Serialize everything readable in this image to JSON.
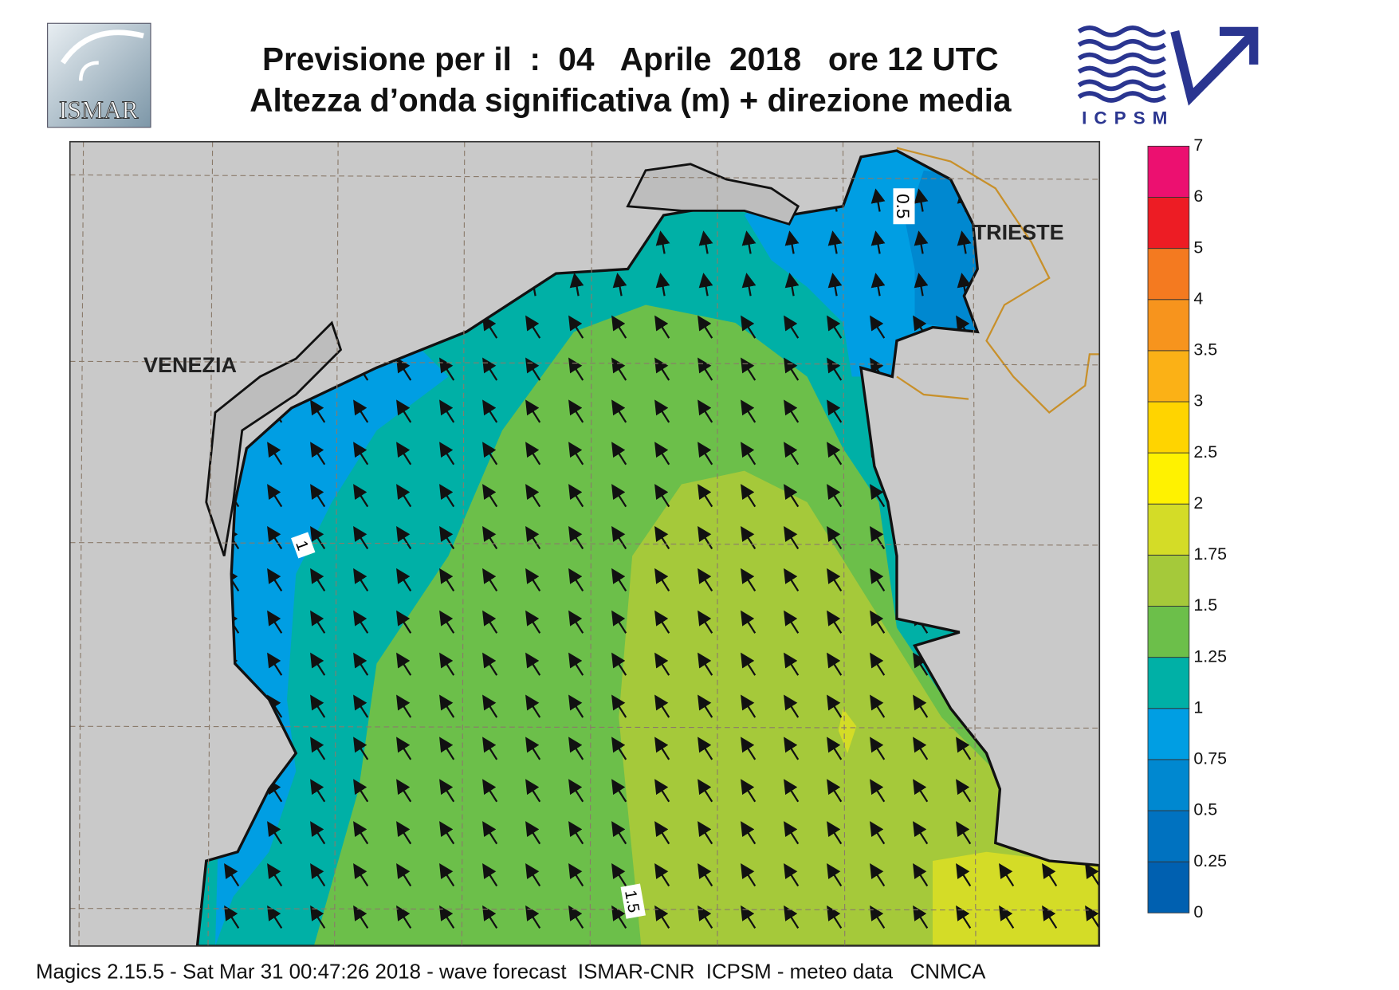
{
  "header": {
    "title_line1": "Previsione per il  :  04   Aprile  2018   ore 12 UTC",
    "title_line2": "Altezza d’onda significativa (m) + direzione media",
    "logo_left": "ISMAR",
    "logo_right": "ICPSM"
  },
  "map": {
    "places": [
      "VENEZIA",
      "TRIESTE"
    ],
    "contour_labels": [
      "0.5",
      "1",
      "1.5"
    ]
  },
  "colorbar": {
    "levels": [
      0,
      0.25,
      0.5,
      0.75,
      1,
      1.25,
      1.5,
      1.75,
      2,
      2.5,
      3,
      3.5,
      4,
      5,
      6,
      7
    ],
    "colors": [
      "#0060b0",
      "#0072c0",
      "#0088d0",
      "#009ee3",
      "#00b0a6",
      "#6cbf4a",
      "#a5c93a",
      "#d4dc27",
      "#fff200",
      "#ffd400",
      "#fbb116",
      "#f7941d",
      "#f47a20",
      "#ed1c24",
      "#ec1070"
    ]
  },
  "footer": "Magics 2.15.5 - Sat Mar 31 00:47:26 2018 - wave forecast  ISMAR-CNR  ICPSM - meteo data   CNMCA"
}
